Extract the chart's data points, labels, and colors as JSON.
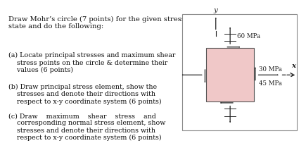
{
  "title_text": "Draw Mohr’s circle (7 points) for the given stress\nstate and do the following:",
  "item_a": "(a) Locate principal stresses and maximum shear\n    stress points on the circle & determine their\n    values (6 points)",
  "item_b": "(b) Draw principal stress element, show the\n    stresses and denote their directions with\n    respect to x-y coordinate system (6 points)",
  "item_c": "(c) Draw    maximum    shear    stress    and\n    corresponding normal stress element, show\n    stresses and denote their directions with\n    respect to x-y coordinate system (6 points)",
  "stress_60": "60 MPa",
  "stress_30": "30 MPa",
  "stress_45": "45 MPa",
  "x_label": "x",
  "y_label": "y",
  "box_color": "#f0c8c8",
  "background": "#ffffff",
  "text_color": "#111111",
  "fs_title": 7.2,
  "fs_body": 6.8,
  "fs_stress": 6.2,
  "fs_axis": 7.5
}
